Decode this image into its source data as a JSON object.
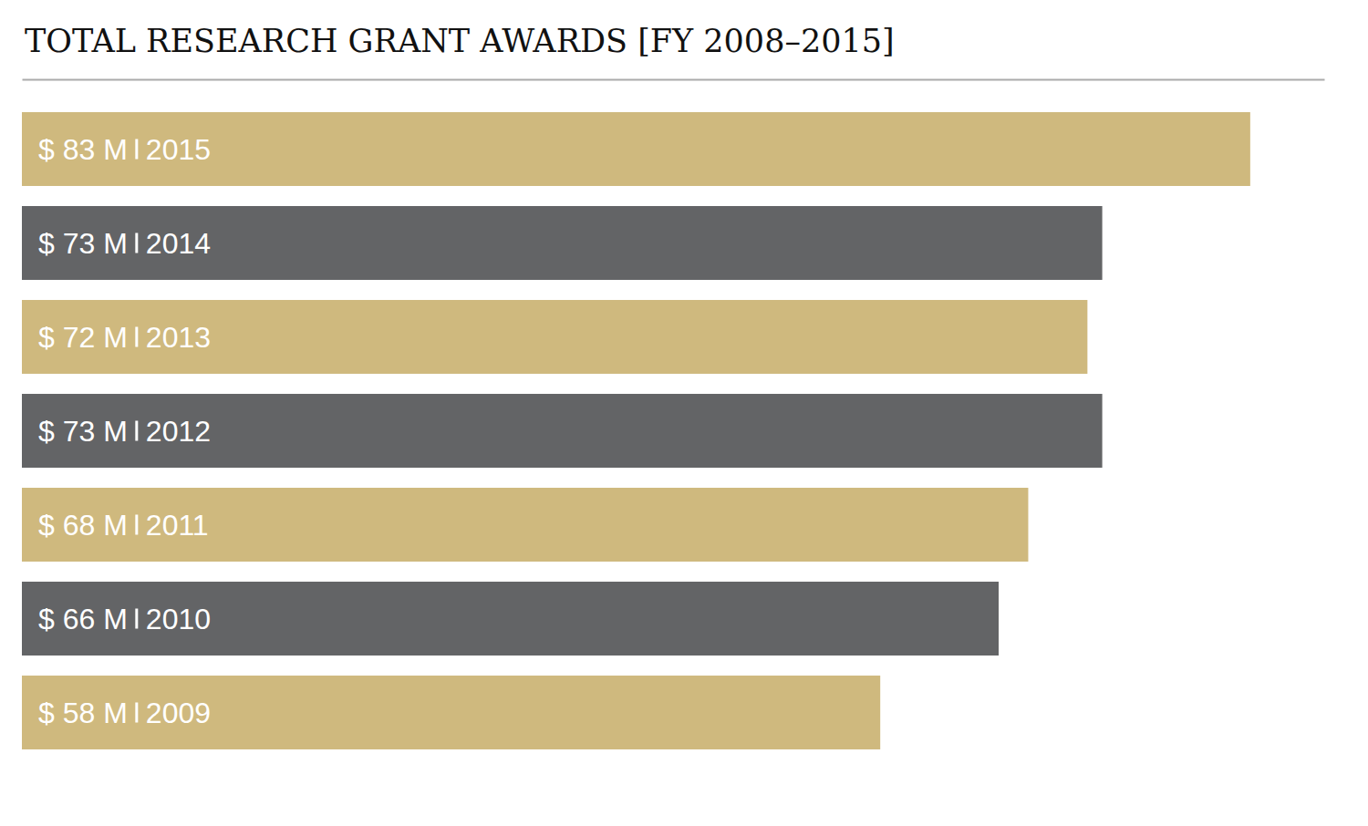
{
  "chart_data": {
    "type": "bar",
    "orientation": "horizontal",
    "title": "TOTAL RESEARCH GRANT AWARDS [FY 2008–2015]",
    "categories": [
      "2015",
      "2014",
      "2013",
      "2012",
      "2011",
      "2010",
      "2009"
    ],
    "values": [
      83,
      73,
      72,
      73,
      68,
      66,
      58
    ],
    "value_labels": [
      "$ 83 M",
      "$ 73 M",
      "$ 72 M",
      "$ 73 M",
      "$ 68 M",
      "$ 66 M",
      "$ 58 M"
    ],
    "colors": [
      "#cfb97e",
      "#636466",
      "#cfb97e",
      "#636466",
      "#cfb97e",
      "#636466",
      "#cfb97e"
    ],
    "xlim": [
      0,
      88
    ],
    "data_labels": true,
    "tick_labels": false
  }
}
